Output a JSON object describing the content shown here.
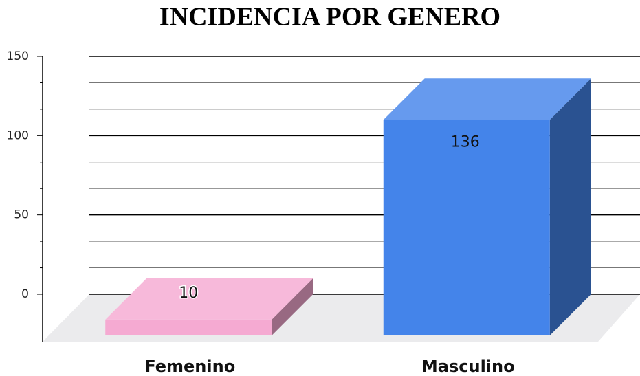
{
  "chart_data": {
    "type": "bar3d",
    "title": "INCIDENCIA POR GENERO",
    "categories": [
      "Femenino",
      "Masculino"
    ],
    "values": [
      10,
      136
    ],
    "colors": [
      "#f5aad2",
      "#4484ea"
    ],
    "ylim": [
      0,
      150
    ],
    "yticks": [
      0,
      50,
      100,
      150
    ],
    "minor_divisions": 3,
    "grid": true
  }
}
